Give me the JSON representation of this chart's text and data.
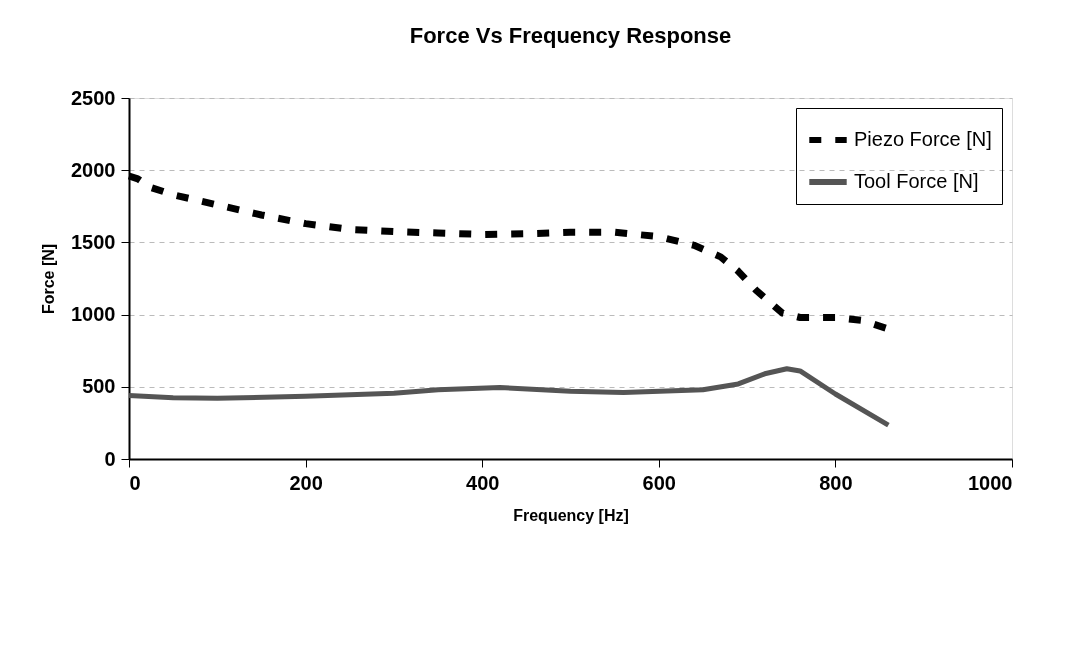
{
  "chart_data": {
    "type": "line",
    "title": "Force Vs Frequency Response",
    "xlabel": "Frequency [Hz]",
    "ylabel": "Force [N]",
    "xlim": [
      0,
      1000
    ],
    "xticks": [
      0,
      200,
      400,
      600,
      800,
      1000
    ],
    "ylim": [
      0,
      2500
    ],
    "yticks": [
      0,
      500,
      1000,
      1500,
      2000,
      2500
    ],
    "grid": "y",
    "legend": "top right",
    "marker": "none",
    "series": [
      {
        "name": "Piezo Force [N]",
        "color": "#000000",
        "line_style": "dashed",
        "x": [
          0,
          10,
          25,
          50,
          100,
          150,
          200,
          250,
          300,
          350,
          400,
          450,
          500,
          550,
          600,
          640,
          670,
          690,
          710,
          740,
          760,
          800,
          830,
          860
        ],
        "values": [
          1960,
          1940,
          1880,
          1830,
          1760,
          1690,
          1630,
          1590,
          1575,
          1565,
          1555,
          1560,
          1570,
          1570,
          1540,
          1480,
          1400,
          1300,
          1170,
          1010,
          980,
          980,
          960,
          900
        ]
      },
      {
        "name": "Tool Force [N]",
        "color": "#555555",
        "line_style": "solid",
        "x": [
          0,
          50,
          100,
          200,
          300,
          350,
          420,
          500,
          560,
          650,
          690,
          720,
          745,
          760,
          800,
          860
        ],
        "values": [
          440,
          425,
          420,
          435,
          455,
          480,
          495,
          470,
          460,
          480,
          520,
          590,
          625,
          610,
          450,
          235
        ]
      }
    ]
  }
}
